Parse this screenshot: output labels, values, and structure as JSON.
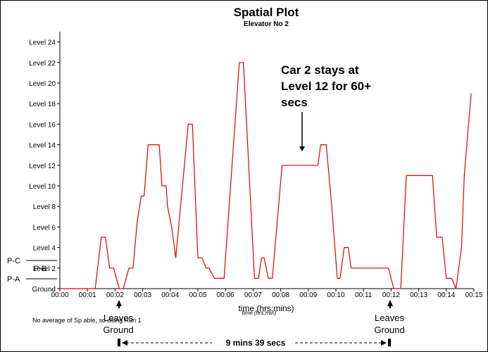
{
  "chart_data": {
    "type": "line",
    "title": "Spatial Plot",
    "subtitle": "Elevator No 2",
    "xlabel": "time (hrs:mins)",
    "xlabel_overlap": "time (hrs:min)",
    "x_ticks": [
      "00:00",
      "00:01",
      "00:02",
      "00:03",
      "00:04",
      "00:05",
      "00:06",
      "00:07",
      "00:08",
      "00:09",
      "00:10",
      "00:11",
      "00:12",
      "00:13",
      "00:14",
      "00:15"
    ],
    "xlim_minutes": [
      0,
      15
    ],
    "y_ticks": [
      "Ground",
      "Level 2",
      "Level 4",
      "Level 6",
      "Level 8",
      "Level 10",
      "Level 12",
      "Level 14",
      "Level 16",
      "Level 18",
      "Level 20",
      "Level 22",
      "Level 24"
    ],
    "ylim_levels": [
      0,
      25
    ],
    "side_labels": [
      "P-C",
      "P-B",
      "P-A"
    ],
    "series": [
      {
        "color": "#e00000",
        "x": [
          0,
          1.28,
          1.5,
          1.65,
          1.8,
          1.95,
          2.15,
          2.3,
          2.5,
          2.55,
          2.65,
          2.8,
          2.95,
          3.05,
          3.2,
          3.3,
          3.55,
          3.6,
          3.7,
          3.85,
          3.9,
          4.05,
          4.2,
          4.65,
          4.8,
          5.0,
          5.15,
          5.3,
          5.4,
          5.6,
          5.95,
          6.5,
          6.65,
          7.05,
          7.2,
          7.3,
          7.4,
          7.55,
          7.7,
          8.05,
          8.3,
          8.7,
          9.05,
          9.25,
          9.35,
          9.45,
          9.65,
          9.85,
          10.05,
          10.15,
          10.3,
          10.45,
          10.55,
          11.35,
          11.55,
          11.9,
          12.1,
          12.35,
          12.55,
          13.0,
          13.35,
          13.5,
          13.65,
          13.85,
          14.0,
          14.2,
          14.35,
          14.55,
          14.65,
          14.9
        ],
        "y": [
          0,
          0,
          5,
          5,
          2,
          2,
          0,
          0,
          2,
          2,
          2,
          6.5,
          9,
          9,
          14,
          14,
          14,
          14,
          10,
          10,
          8,
          6,
          3,
          16,
          16,
          3,
          3,
          2,
          2,
          1,
          1,
          22,
          22,
          1,
          1,
          3,
          3,
          1,
          1,
          12,
          12,
          12,
          12,
          12,
          12,
          14,
          14,
          8,
          1,
          1,
          4,
          4,
          2,
          2,
          2,
          2,
          0,
          0,
          11,
          11,
          11,
          11,
          5,
          5,
          1,
          1,
          0,
          4,
          11,
          19
        ]
      }
    ],
    "annotations": [
      {
        "text_lines": [
          "Car 2 stays at",
          "Level 12 for 60+",
          "secs"
        ]
      },
      {
        "text_lines": [
          "Leaves",
          "Ground"
        ],
        "at": "00:02"
      },
      {
        "text_lines": [
          "Leaves",
          "Ground"
        ],
        "at": "00:12"
      },
      {
        "text": "9 mins 39 secs"
      }
    ],
    "footnote": "No average of Sp          able, so using Run 1",
    "grid": false,
    "legend": "none"
  }
}
